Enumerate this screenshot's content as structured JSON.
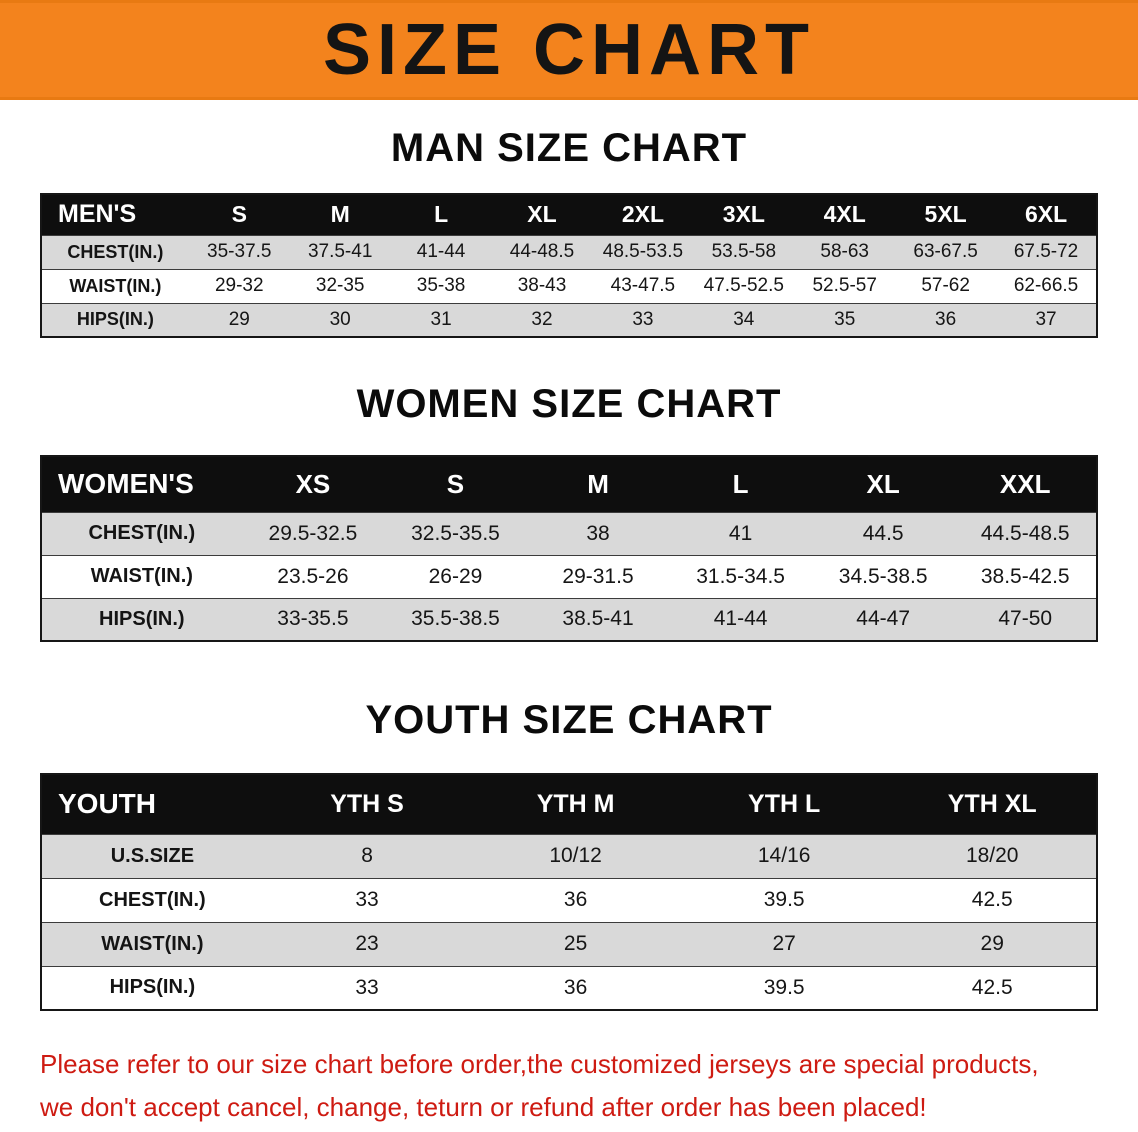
{
  "banner": {
    "title": "SIZE CHART"
  },
  "colors": {
    "banner_bg": "#f3831d",
    "header_bg": "#0e0e0e",
    "row_stripe": "#d9d9d9",
    "notice_text": "#ce1b12"
  },
  "sections": [
    {
      "id": "men",
      "heading": "MAN SIZE CHART",
      "corner": "MEN'S",
      "columns": [
        "S",
        "M",
        "L",
        "XL",
        "2XL",
        "3XL",
        "4XL",
        "5XL",
        "6XL"
      ],
      "rows": [
        {
          "label": "CHEST(IN.)",
          "values": [
            "35-37.5",
            "37.5-41",
            "41-44",
            "44-48.5",
            "48.5-53.5",
            "53.5-58",
            "58-63",
            "63-67.5",
            "67.5-72"
          ]
        },
        {
          "label": "WAIST(IN.)",
          "values": [
            "29-32",
            "32-35",
            "35-38",
            "38-43",
            "43-47.5",
            "47.5-52.5",
            "52.5-57",
            "57-62",
            "62-66.5"
          ]
        },
        {
          "label": "HIPS(IN.)",
          "values": [
            "29",
            "30",
            "31",
            "32",
            "33",
            "34",
            "35",
            "36",
            "37"
          ]
        }
      ]
    },
    {
      "id": "women",
      "heading": "WOMEN SIZE CHART",
      "corner": "WOMEN'S",
      "columns": [
        "XS",
        "S",
        "M",
        "L",
        "XL",
        "XXL"
      ],
      "rows": [
        {
          "label": "CHEST(IN.)",
          "values": [
            "29.5-32.5",
            "32.5-35.5",
            "38",
            "41",
            "44.5",
            "44.5-48.5"
          ]
        },
        {
          "label": "WAIST(IN.)",
          "values": [
            "23.5-26",
            "26-29",
            "29-31.5",
            "31.5-34.5",
            "34.5-38.5",
            "38.5-42.5"
          ]
        },
        {
          "label": "HIPS(IN.)",
          "values": [
            "33-35.5",
            "35.5-38.5",
            "38.5-41",
            "41-44",
            "44-47",
            "47-50"
          ]
        }
      ]
    },
    {
      "id": "youth",
      "heading": "YOUTH SIZE CHART",
      "corner": "YOUTH",
      "columns": [
        "YTH S",
        "YTH M",
        "YTH L",
        "YTH XL"
      ],
      "rows": [
        {
          "label": "U.S.SIZE",
          "values": [
            "8",
            "10/12",
            "14/16",
            "18/20"
          ]
        },
        {
          "label": "CHEST(IN.)",
          "values": [
            "33",
            "36",
            "39.5",
            "42.5"
          ]
        },
        {
          "label": "WAIST(IN.)",
          "values": [
            "23",
            "25",
            "27",
            "29"
          ]
        },
        {
          "label": "HIPS(IN.)",
          "values": [
            "33",
            "36",
            "39.5",
            "42.5"
          ]
        }
      ]
    }
  ],
  "notice": {
    "line1": "Please refer to our size chart before order,the customized jerseys are special products,",
    "line2": "we don't accept cancel, change, teturn or refund after order has been placed!"
  }
}
